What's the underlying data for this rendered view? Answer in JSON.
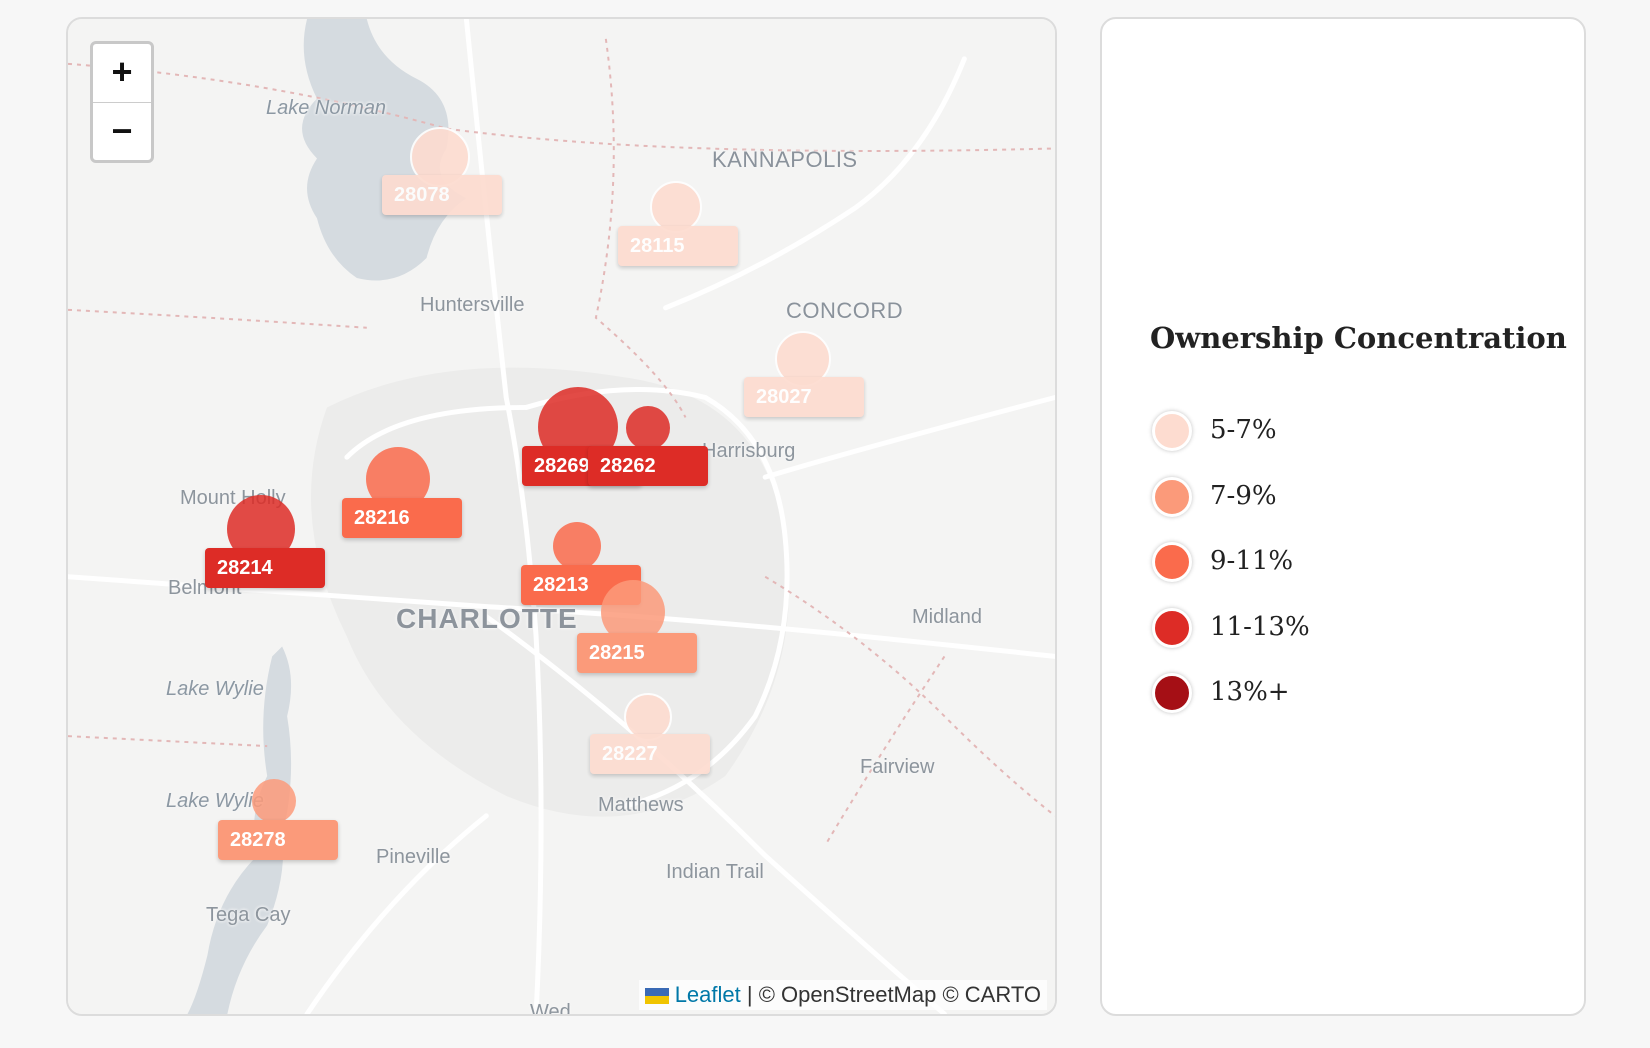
{
  "map": {
    "zoom_in_label": "+",
    "zoom_out_label": "−",
    "attribution": {
      "leaflet": "Leaflet",
      "separator": "|",
      "credits": "© OpenStreetMap © CARTO"
    },
    "places": {
      "lake_norman": "Lake Norman",
      "kannapolis": "KANNAPOLIS",
      "huntersville": "Huntersville",
      "concord": "CONCORD",
      "harrisburg": "Harrisburg",
      "mount_holly": "Mount Holly",
      "belmont": "Belmont",
      "charlotte": "CHARLOTTE",
      "midland": "Midland",
      "lake_wylie_1": "Lake Wylie",
      "lake_wylie_2": "Lake Wylie",
      "fairview": "Fairview",
      "matthews": "Matthews",
      "pineville": "Pineville",
      "indian_trail": "Indian Trail",
      "tega_cay": "Tega Cay",
      "weddington": "Wed..."
    },
    "zip_markers": [
      {
        "zip": "28078",
        "range": "5-7%"
      },
      {
        "zip": "28115",
        "range": "5-7%"
      },
      {
        "zip": "28027",
        "range": "5-7%"
      },
      {
        "zip": "28269",
        "range": "11-13%"
      },
      {
        "zip": "28262",
        "range": "11-13%"
      },
      {
        "zip": "28216",
        "range": "9-11%"
      },
      {
        "zip": "28214",
        "range": "11-13%"
      },
      {
        "zip": "28213",
        "range": "9-11%"
      },
      {
        "zip": "28215",
        "range": "7-9%"
      },
      {
        "zip": "28227",
        "range": "5-7%"
      },
      {
        "zip": "28278",
        "range": "7-9%"
      }
    ]
  },
  "legend": {
    "title": "Ownership Concentration",
    "items": [
      {
        "label": "5-7%",
        "color": "#fddcd0"
      },
      {
        "label": "7-9%",
        "color": "#fb9a7a"
      },
      {
        "label": "9-11%",
        "color": "#fa6b4c"
      },
      {
        "label": "11-13%",
        "color": "#dd2c26"
      },
      {
        "label": "13%+",
        "color": "#a50f15"
      }
    ]
  },
  "colors": {
    "water": "#d5dbe0",
    "road": "#ffffff",
    "boundary": "#e3b7b7"
  }
}
